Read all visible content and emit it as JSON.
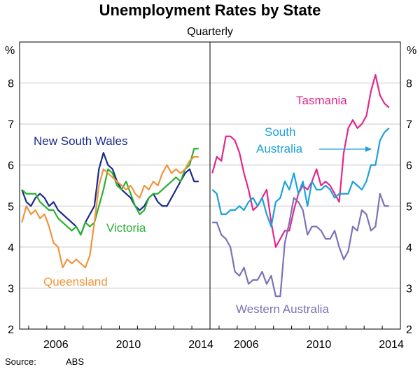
{
  "title": "Unemployment Rates by State",
  "subtitle": "Quarterly",
  "source_label": "Source:",
  "source_value": "ABS",
  "unit_left": "%",
  "unit_right": "%",
  "colors": {
    "nsw": "#1a2b8c",
    "vic": "#2bb033",
    "qld": "#f0953c",
    "tas": "#e0288c",
    "sa": "#1ea0dc",
    "wa": "#7b72b8",
    "axis": "#000000",
    "grid": "#c8c8c8"
  },
  "chart_data": [
    {
      "type": "line",
      "panel": "left",
      "x": [
        "2004-Q3",
        "2004-Q4",
        "2005-Q1",
        "2005-Q2",
        "2005-Q3",
        "2005-Q4",
        "2006-Q1",
        "2006-Q2",
        "2006-Q3",
        "2006-Q4",
        "2007-Q1",
        "2007-Q2",
        "2007-Q3",
        "2007-Q4",
        "2008-Q1",
        "2008-Q2",
        "2008-Q3",
        "2008-Q4",
        "2009-Q1",
        "2009-Q2",
        "2009-Q3",
        "2009-Q4",
        "2010-Q1",
        "2010-Q2",
        "2010-Q3",
        "2010-Q4",
        "2011-Q1",
        "2011-Q2",
        "2011-Q3",
        "2011-Q4",
        "2012-Q1",
        "2012-Q2",
        "2012-Q3",
        "2012-Q4",
        "2013-Q1",
        "2013-Q2",
        "2013-Q3",
        "2013-Q4",
        "2014-Q1",
        "2014-Q2"
      ],
      "series": [
        {
          "name": "New South Wales",
          "color_key": "nsw",
          "values": [
            5.4,
            5.1,
            5.0,
            5.2,
            5.3,
            5.2,
            5.0,
            5.1,
            4.9,
            4.8,
            4.7,
            4.6,
            4.5,
            4.3,
            4.6,
            4.8,
            5.0,
            5.9,
            6.3,
            6.0,
            5.9,
            5.6,
            5.4,
            5.3,
            5.2,
            5.0,
            4.9,
            5.0,
            5.2,
            5.3,
            5.1,
            5.0,
            5.0,
            5.2,
            5.4,
            5.6,
            5.8,
            5.9,
            5.6,
            5.6
          ]
        },
        {
          "name": "Victoria",
          "color_key": "vic",
          "values": [
            5.4,
            5.3,
            5.3,
            5.3,
            5.1,
            5.0,
            4.9,
            4.9,
            4.7,
            4.6,
            4.5,
            4.4,
            4.5,
            4.3,
            4.6,
            4.5,
            4.6,
            5.0,
            5.4,
            5.9,
            5.8,
            5.5,
            5.4,
            5.6,
            5.3,
            5.0,
            4.8,
            4.9,
            5.2,
            5.3,
            5.3,
            5.4,
            5.5,
            5.6,
            5.7,
            5.6,
            5.9,
            6.0,
            6.4,
            6.4
          ]
        },
        {
          "name": "Queensland",
          "color_key": "qld",
          "values": [
            4.6,
            5.0,
            4.8,
            4.9,
            4.7,
            4.8,
            4.5,
            4.1,
            4.0,
            3.5,
            3.7,
            3.6,
            3.7,
            3.6,
            3.5,
            3.8,
            4.6,
            5.5,
            5.9,
            5.8,
            5.7,
            5.6,
            5.5,
            5.4,
            5.5,
            5.3,
            5.2,
            5.5,
            5.4,
            5.6,
            5.5,
            5.8,
            6.0,
            5.8,
            5.9,
            5.8,
            5.9,
            6.1,
            6.2,
            6.2
          ]
        }
      ],
      "ylim": [
        2,
        9
      ],
      "yticks": [
        2,
        3,
        4,
        5,
        6,
        7,
        8
      ],
      "xticks": [
        "2006",
        "2010",
        "2014"
      ],
      "xlim_years": [
        2004.5,
        2015.0
      ]
    },
    {
      "type": "line",
      "panel": "right",
      "x": [
        "2004-Q3",
        "2004-Q4",
        "2005-Q1",
        "2005-Q2",
        "2005-Q3",
        "2005-Q4",
        "2006-Q1",
        "2006-Q2",
        "2006-Q3",
        "2006-Q4",
        "2007-Q1",
        "2007-Q2",
        "2007-Q3",
        "2007-Q4",
        "2008-Q1",
        "2008-Q2",
        "2008-Q3",
        "2008-Q4",
        "2009-Q1",
        "2009-Q2",
        "2009-Q3",
        "2009-Q4",
        "2010-Q1",
        "2010-Q2",
        "2010-Q3",
        "2010-Q4",
        "2011-Q1",
        "2011-Q2",
        "2011-Q3",
        "2011-Q4",
        "2012-Q1",
        "2012-Q2",
        "2012-Q3",
        "2012-Q4",
        "2013-Q1",
        "2013-Q2",
        "2013-Q3",
        "2013-Q4",
        "2014-Q1",
        "2014-Q2"
      ],
      "series": [
        {
          "name": "Tasmania",
          "color_key": "tas",
          "values": [
            5.8,
            6.2,
            6.1,
            6.7,
            6.7,
            6.6,
            6.3,
            5.8,
            5.4,
            4.9,
            5.0,
            5.2,
            5.4,
            4.6,
            4.0,
            4.2,
            4.4,
            4.4,
            4.9,
            5.3,
            5.5,
            5.4,
            5.6,
            5.9,
            5.5,
            5.6,
            5.5,
            5.3,
            5.1,
            6.3,
            6.9,
            7.1,
            6.9,
            7.0,
            7.2,
            7.8,
            8.2,
            7.7,
            7.5,
            7.4
          ]
        },
        {
          "name": "South Australia",
          "color_key": "sa",
          "values": [
            5.4,
            5.3,
            4.8,
            4.8,
            4.9,
            4.9,
            5.0,
            4.9,
            5.1,
            5.2,
            5.0,
            5.2,
            4.8,
            4.5,
            5.1,
            5.2,
            5.6,
            5.4,
            5.8,
            5.3,
            5.6,
            5.0,
            5.6,
            5.4,
            5.4,
            5.5,
            5.4,
            5.2,
            5.3,
            5.3,
            5.3,
            5.6,
            5.5,
            5.4,
            5.6,
            6.0,
            6.0,
            6.6,
            6.8,
            6.9
          ]
        },
        {
          "name": "Western Australia",
          "color_key": "wa",
          "values": [
            4.6,
            4.6,
            4.3,
            4.2,
            4.0,
            3.4,
            3.3,
            3.5,
            3.1,
            3.2,
            3.2,
            3.4,
            3.1,
            3.3,
            2.8,
            2.8,
            4.1,
            4.6,
            5.2,
            5.1,
            4.9,
            4.3,
            4.5,
            4.5,
            4.4,
            4.2,
            4.2,
            4.4,
            4.0,
            3.7,
            3.9,
            4.5,
            4.4,
            4.9,
            4.8,
            4.4,
            4.5,
            5.3,
            5.0,
            5.0
          ]
        }
      ],
      "ylim": [
        2,
        9
      ],
      "yticks": [
        2,
        3,
        4,
        5,
        6,
        7,
        8
      ],
      "xticks": [
        "2006",
        "2010",
        "2014"
      ],
      "xlim_years": [
        2004.5,
        2015.0
      ]
    }
  ]
}
